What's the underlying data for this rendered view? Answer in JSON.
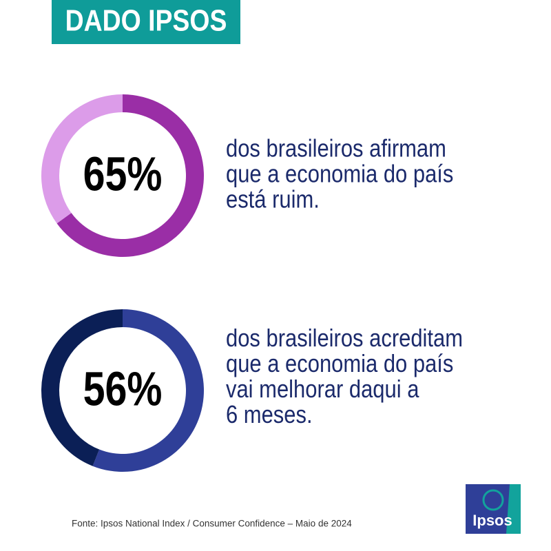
{
  "header": {
    "title": "DADO IPSOS"
  },
  "chart_data": [
    {
      "type": "donut",
      "value_labels": [
        "65%",
        null
      ],
      "values": [
        65,
        35
      ],
      "colors": [
        "#9a2ea6",
        "#dc9ce9"
      ],
      "description": [
        "dos brasileiros afirmam",
        "que a economia do país",
        "está ruim."
      ]
    },
    {
      "type": "donut",
      "value_labels": [
        "56%",
        null
      ],
      "values": [
        56,
        44
      ],
      "colors": [
        "#2f3f98",
        "#0b1f56"
      ],
      "description": [
        "dos brasileiros acreditam",
        "que a economia do país",
        "vai melhorar daqui a",
        "6 meses."
      ]
    }
  ],
  "source": "Fonte: Ipsos National Index / Consumer Confidence – Maio de 2024",
  "logo": "Ipsos"
}
